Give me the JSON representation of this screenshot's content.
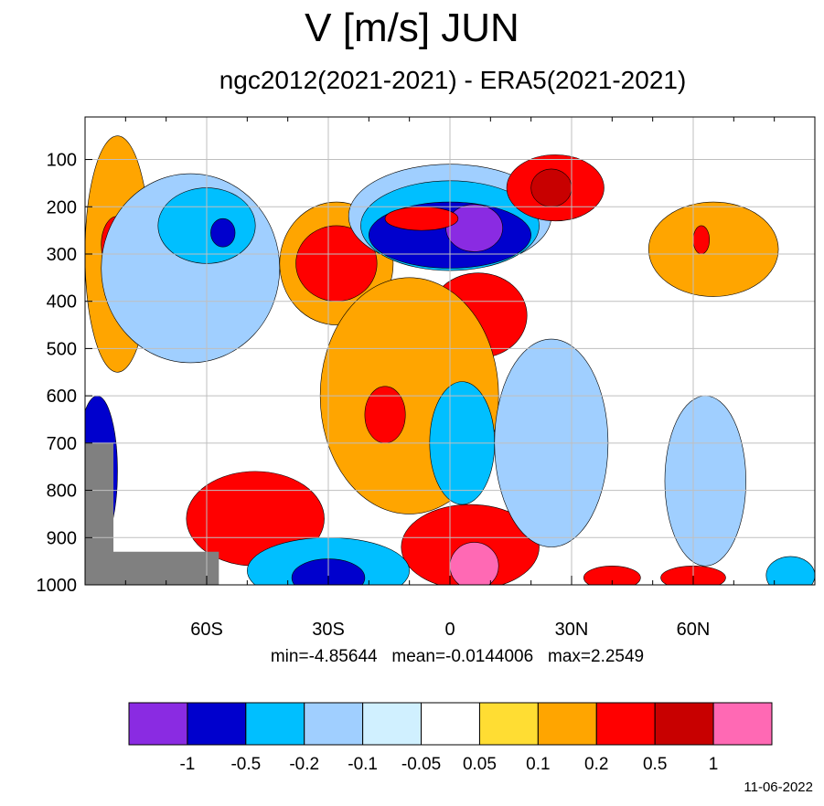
{
  "title": "V [m/s] JUN",
  "subtitle": "ngc2012(2021-2021) - ERA5(2021-2021)",
  "stats": "min=-4.85644   mean=-0.0144006   max=2.2549",
  "date": "11-06-2022",
  "chart_data": {
    "type": "heatmap",
    "title": "V [m/s] JUN",
    "subtitle": "ngc2012(2021-2021) - ERA5(2021-2021)",
    "x_ticks": [
      "60S",
      "30S",
      "0",
      "30N",
      "60N"
    ],
    "x_tick_values": [
      -60,
      -30,
      0,
      30,
      60
    ],
    "xlim": [
      -90,
      90
    ],
    "y_ticks": [
      "100",
      "200",
      "300",
      "400",
      "500",
      "600",
      "700",
      "800",
      "900",
      "1000"
    ],
    "y_tick_values": [
      100,
      200,
      300,
      400,
      500,
      600,
      700,
      800,
      900,
      1000
    ],
    "ylim": [
      10,
      1000
    ],
    "grid": true,
    "levels": [
      -1,
      -0.5,
      -0.2,
      -0.1,
      -0.05,
      0.05,
      0.1,
      0.2,
      0.5,
      1
    ],
    "level_labels": [
      "-1",
      "-0.5",
      "-0.2",
      "-0.1",
      "-0.05",
      "0.05",
      "0.1",
      "0.2",
      "0.5",
      "1"
    ],
    "colors": [
      "#8a2be2",
      "#0000cd",
      "#00bfff",
      "#a0cfff",
      "#d0f0ff",
      "#ffffff",
      "#ffdd33",
      "#ffa500",
      "#ff0000",
      "#c80000",
      "#ff69b4"
    ],
    "stats": {
      "min": -4.85644,
      "mean": -0.0144006,
      "max": 2.2549
    },
    "date": "11-06-2022",
    "features": [
      {
        "lat": -82,
        "p": 300,
        "rx": 8,
        "ry": 250,
        "level": 7
      },
      {
        "lat": -82,
        "p": 280,
        "rx": 4,
        "ry": 60,
        "level": 8
      },
      {
        "lat": -74,
        "p": 300,
        "rx": 3,
        "ry": 80,
        "level": 8
      },
      {
        "lat": -64,
        "p": 330,
        "rx": 22,
        "ry": 200,
        "level": 3
      },
      {
        "lat": -60,
        "p": 240,
        "rx": 12,
        "ry": 80,
        "level": 2
      },
      {
        "lat": -56,
        "p": 255,
        "rx": 3,
        "ry": 30,
        "level": 1
      },
      {
        "lat": -28,
        "p": 320,
        "rx": 14,
        "ry": 130,
        "level": 7
      },
      {
        "lat": -28,
        "p": 320,
        "rx": 10,
        "ry": 80,
        "level": 8
      },
      {
        "lat": 0,
        "p": 220,
        "rx": 25,
        "ry": 110,
        "level": 3
      },
      {
        "lat": 0,
        "p": 240,
        "rx": 22,
        "ry": 95,
        "level": 2
      },
      {
        "lat": 0,
        "p": 260,
        "rx": 20,
        "ry": 70,
        "level": 1
      },
      {
        "lat": 6,
        "p": 245,
        "rx": 7,
        "ry": 50,
        "level": 0
      },
      {
        "lat": -7,
        "p": 225,
        "rx": 9,
        "ry": 25,
        "level": 8
      },
      {
        "lat": 26,
        "p": 160,
        "rx": 12,
        "ry": 70,
        "level": 8
      },
      {
        "lat": 25,
        "p": 160,
        "rx": 5,
        "ry": 40,
        "level": 9
      },
      {
        "lat": 7,
        "p": 430,
        "rx": 12,
        "ry": 90,
        "level": 8
      },
      {
        "lat": -10,
        "p": 600,
        "rx": 22,
        "ry": 250,
        "level": 7
      },
      {
        "lat": -16,
        "p": 640,
        "rx": 5,
        "ry": 60,
        "level": 8
      },
      {
        "lat": 3,
        "p": 700,
        "rx": 8,
        "ry": 130,
        "level": 2
      },
      {
        "lat": 5,
        "p": 920,
        "rx": 17,
        "ry": 90,
        "level": 8
      },
      {
        "lat": 6,
        "p": 960,
        "rx": 6,
        "ry": 50,
        "level": 10
      },
      {
        "lat": -48,
        "p": 860,
        "rx": 17,
        "ry": 100,
        "level": 8
      },
      {
        "lat": -30,
        "p": 970,
        "rx": 20,
        "ry": 70,
        "level": 2
      },
      {
        "lat": -30,
        "p": 985,
        "rx": 9,
        "ry": 40,
        "level": 1
      },
      {
        "lat": 25,
        "p": 700,
        "rx": 14,
        "ry": 220,
        "level": 3
      },
      {
        "lat": 65,
        "p": 290,
        "rx": 16,
        "ry": 100,
        "level": 7
      },
      {
        "lat": 62,
        "p": 270,
        "rx": 2,
        "ry": 30,
        "level": 8
      },
      {
        "lat": 63,
        "p": 780,
        "rx": 10,
        "ry": 180,
        "level": 3
      },
      {
        "lat": 84,
        "p": 980,
        "rx": 6,
        "ry": 40,
        "level": 2
      },
      {
        "lat": 40,
        "p": 985,
        "rx": 7,
        "ry": 25,
        "level": 8
      },
      {
        "lat": 60,
        "p": 985,
        "rx": 8,
        "ry": 25,
        "level": 8
      },
      {
        "lat": -87,
        "p": 760,
        "rx": 5,
        "ry": 160,
        "level": 1
      }
    ]
  }
}
